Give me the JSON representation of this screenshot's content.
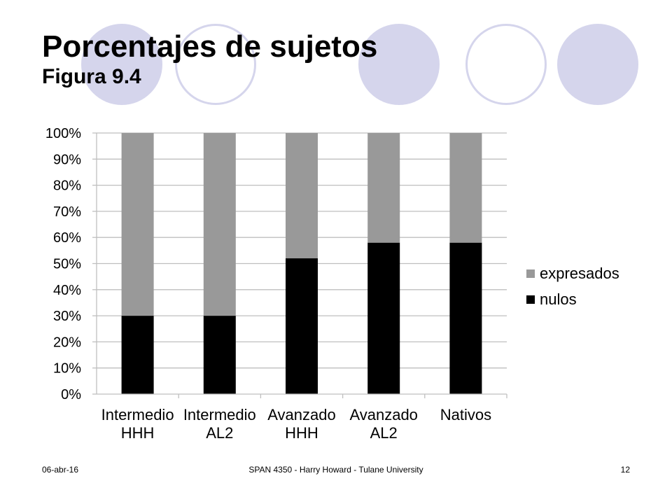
{
  "slide": {
    "title": "Porcentajes de sujetos",
    "subtitle": "Figura 9.4",
    "footer_date": "06-abr-16",
    "footer_center": "SPAN 4350 - Harry Howard - Tulane University",
    "footer_page": "12"
  },
  "colors": {
    "decor_circle": "#d5d5ec",
    "nulos": "#000000",
    "expresados": "#999999",
    "grid": "#bfbfbf"
  },
  "chart_data": {
    "type": "bar",
    "stacked": true,
    "percent": true,
    "categories": [
      [
        "Intermedio",
        "HHH"
      ],
      [
        "Intermedio",
        "AL2"
      ],
      [
        "Avanzado",
        "HHH"
      ],
      [
        "Avanzado",
        "AL2"
      ],
      [
        "Nativos"
      ]
    ],
    "series": [
      {
        "name": "nulos",
        "values": [
          30,
          30,
          52,
          58,
          58
        ],
        "color": "#000000"
      },
      {
        "name": "expresados",
        "values": [
          70,
          70,
          48,
          42,
          42
        ],
        "color": "#999999"
      }
    ],
    "ylim": [
      0,
      100
    ],
    "yticks": [
      "0%",
      "10%",
      "20%",
      "30%",
      "40%",
      "50%",
      "60%",
      "70%",
      "80%",
      "90%",
      "100%"
    ],
    "grid": true,
    "legend": {
      "position": "right",
      "entries": [
        "expresados",
        "nulos"
      ]
    },
    "title": "",
    "xlabel": "",
    "ylabel": ""
  }
}
